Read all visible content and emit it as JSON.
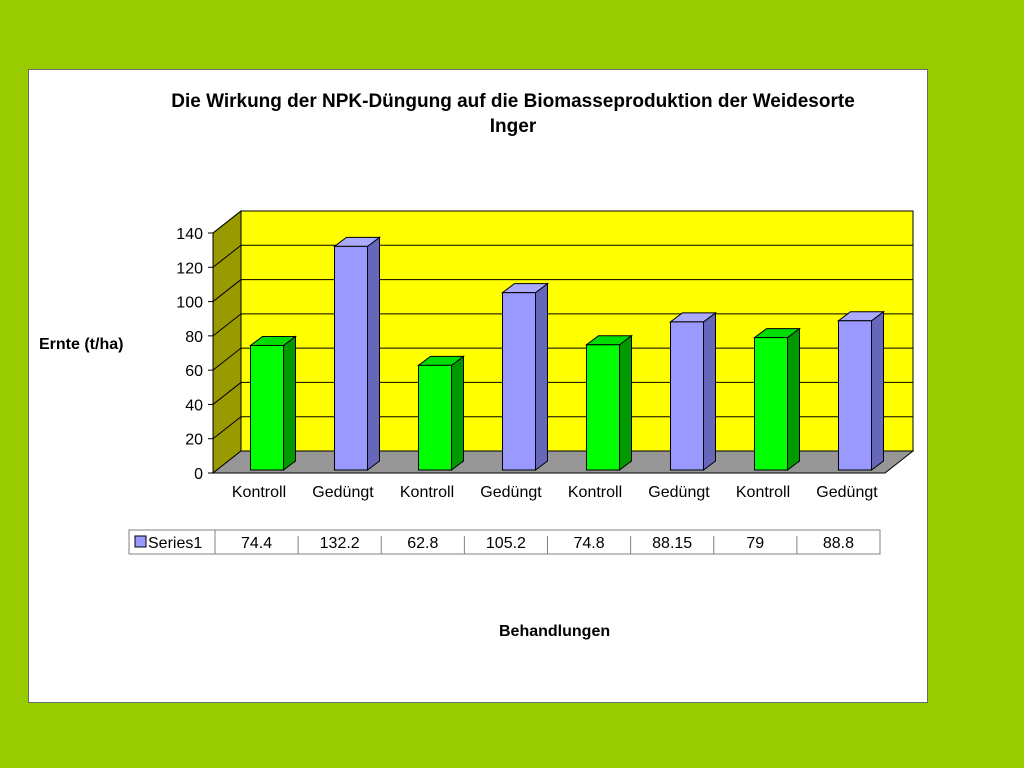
{
  "chart_data": {
    "type": "bar",
    "title": "Die Wirkung der NPK-Düngung auf die Biomasseproduktion der Weidesorte Inger",
    "xlabel": "Behandlungen",
    "ylabel": "Ernte (t/ha)",
    "categories": [
      "Kontroll",
      "Gedüngt",
      "Kontroll",
      "Gedüngt",
      "Kontroll",
      "Gedüngt",
      "Kontroll",
      "Gedüngt"
    ],
    "series": [
      {
        "name": "Series1",
        "values": [
          74.4,
          132.2,
          62.8,
          105.2,
          74.8,
          88.15,
          79,
          88.8
        ]
      }
    ],
    "value_labels": [
      "74.4",
      "132.2",
      "62.8",
      "105.2",
      "74.8",
      "88.15",
      "79",
      "88.8"
    ],
    "yticks": [
      "0",
      "20",
      "40",
      "60",
      "80",
      "100",
      "120",
      "140"
    ],
    "ylim": [
      0,
      140
    ],
    "grid": true,
    "legend": "data-table-below",
    "colors": {
      "kontroll": "#00ff00",
      "geduengt": "#9999ff",
      "plot_background": "#ffff00",
      "side_wall": "#999900",
      "floor": "#969696"
    }
  }
}
